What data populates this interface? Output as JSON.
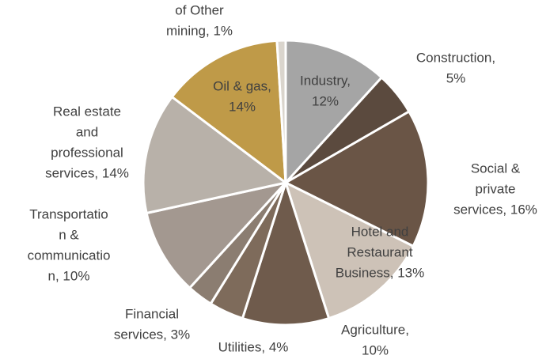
{
  "chart_data": {
    "type": "pie",
    "values": [
      12,
      5,
      16,
      13,
      10,
      4,
      3,
      10,
      14,
      14,
      1
    ],
    "value_labels": [
      [
        "Industry,",
        "12%"
      ],
      [
        "Construction,",
        "5%"
      ],
      [
        "Social &",
        "private",
        "services, 16%"
      ],
      [
        "Hotel and",
        "Restaurant",
        "Business, 13%"
      ],
      [
        "Agriculture,",
        "10%"
      ],
      [
        "Utilities, 4%"
      ],
      [
        "Financial",
        "services, 3%"
      ],
      [
        "Transportatio",
        "n &",
        "communicatio",
        "n, 10%"
      ],
      [
        "Real estate",
        "and",
        "professional",
        "services, 14%"
      ],
      [
        "Oil & gas,",
        "14%"
      ],
      [
        "of Other",
        "mining, 1%"
      ]
    ],
    "colors": [
      "#a5a5a5",
      "#5b4a3e",
      "#6a5546",
      "#cdc2b7",
      "#6f5b4c",
      "#7e6b5b",
      "#8b7d71",
      "#a39890",
      "#b8b1a9",
      "#bf9a48",
      "#dad5cd"
    ]
  }
}
